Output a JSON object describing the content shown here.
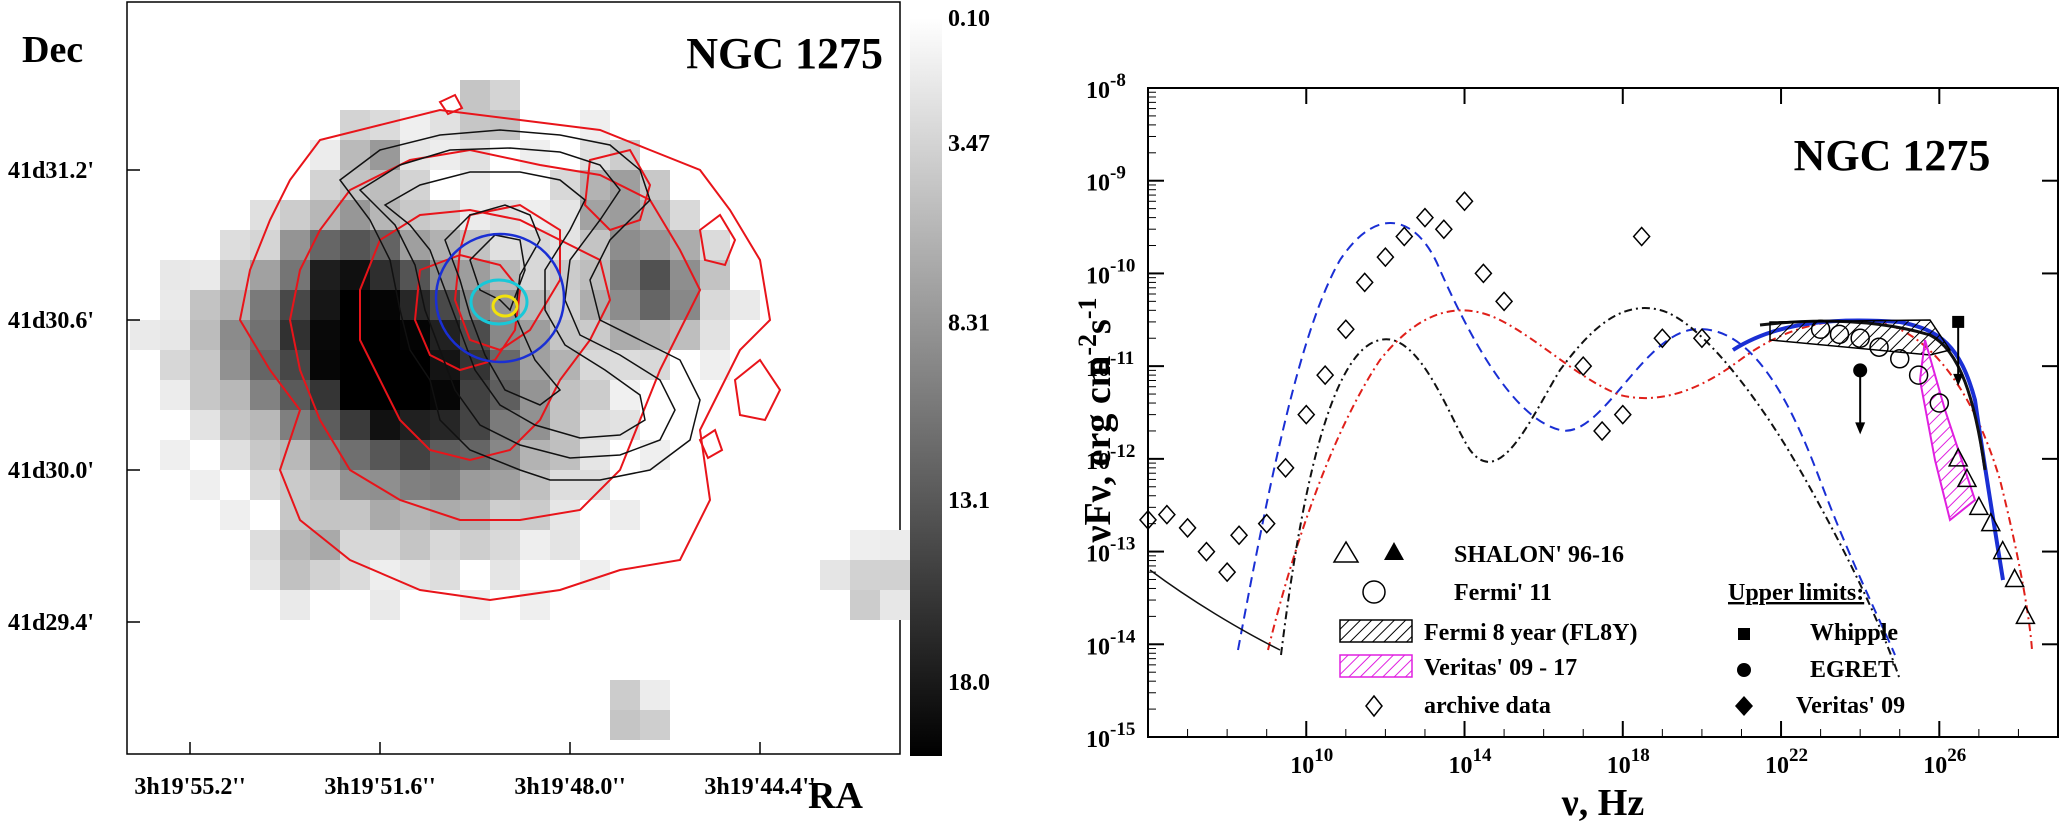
{
  "chart_data": [
    {
      "type": "heatmap",
      "title": "NGC 1275",
      "xlabel": "RA",
      "ylabel": "Dec",
      "x_ticks": [
        "3h19'55.2''",
        "3h19'51.6''",
        "3h19'48.0''",
        "3h19'44.4''"
      ],
      "y_ticks": [
        "41d31.2'",
        "41d30.6'",
        "41d30.0'",
        "41d29.4'"
      ],
      "colorbar_ticks": [
        "0.10",
        "3.47",
        "8.31",
        "13.1",
        "18.0"
      ],
      "colorbar_range": [
        0.1,
        20.0
      ],
      "colormap": "white-to-black",
      "contour_colors": {
        "red": "#e8141a",
        "black": "#111111",
        "blue": "#1a2fd4",
        "cyan": "#18c8d8",
        "yellow": "#f2e20c"
      }
    },
    {
      "type": "scatter",
      "title": "NGC 1275",
      "xlabel": "ν, Hz",
      "ylabel": "νFν, erg cm-2s-1",
      "log_x": true,
      "log_y": true,
      "xlim": [
        1000000.0,
        1e+29
      ],
      "ylim": [
        1e-15,
        1e-08
      ],
      "x_ticks": [
        "10",
        "10",
        "10",
        "10",
        "10"
      ],
      "x_tick_exponents": [
        "10",
        "14",
        "18",
        "22",
        "26"
      ],
      "y_ticks": [
        "10",
        "10",
        "10",
        "10",
        "10",
        "10",
        "10",
        "10"
      ],
      "y_tick_exponents": [
        "-8",
        "-9",
        "-10",
        "-11",
        "-12",
        "-13",
        "-14",
        "-15"
      ],
      "legend": {
        "shalon": "SHALON' 96-16",
        "fermi11": "Fermi' 11",
        "fermi8": "Fermi 8 year (FL8Y)",
        "veritas0917": "Veritas' 09 - 17",
        "archive": "archive data",
        "upper_limits": "Upper limits:",
        "whipple": "Whipple",
        "egret": "EGRET",
        "veritas09": "Veritas' 09"
      },
      "series": [
        {
          "name": "archive data",
          "x": [
            1000000.0,
            3000000.0,
            10000000.0,
            30000000.0,
            100000000.0,
            200000000.0,
            1000000000.0,
            3000000000.0,
            10000000000.0,
            30000000000.0,
            100000000000.0,
            300000000000.0,
            1000000000000.0,
            3000000000000.0,
            10000000000000.0,
            30000000000000.0,
            100000000000000.0,
            300000000000000.0,
            1000000000000000.0,
            1e+17,
            3e+17,
            1e+18,
            3e+18,
            1e+19,
            1e+20
          ],
          "y": [
            2.2e-13,
            2.5e-13,
            1.8e-13,
            1e-13,
            6e-14,
            1.5e-13,
            2e-13,
            8e-13,
            3e-12,
            8e-12,
            2.5e-11,
            8e-11,
            1.5e-10,
            2.5e-10,
            4e-10,
            3e-10,
            6e-10,
            1e-10,
            5e-11,
            1e-11,
            2e-12,
            3e-12,
            2.5e-10,
            2e-11,
            2e-11
          ]
        },
        {
          "name": "Fermi' 11",
          "x": [
            1e+23,
            3e+23,
            1e+24,
            3e+24,
            1e+25,
            3e+25,
            1e+26
          ],
          "y": [
            2.5e-11,
            2.2e-11,
            2e-11,
            1.6e-11,
            1.2e-11,
            8e-12,
            4e-12
          ]
        },
        {
          "name": "SHALON' 96-16",
          "x": [
            3e+26,
            5e+26,
            1e+27,
            2e+27,
            4e+27,
            8e+27,
            1.5e+28
          ],
          "y": [
            1e-12,
            6e-13,
            3e-13,
            2e-13,
            1e-13,
            5e-14,
            2e-14
          ]
        },
        {
          "name": "Whipple",
          "x": [
            3e+26
          ],
          "y": [
            3e-11
          ]
        },
        {
          "name": "EGRET",
          "x": [
            1e+24
          ],
          "y": [
            9e-12
          ]
        }
      ]
    }
  ]
}
